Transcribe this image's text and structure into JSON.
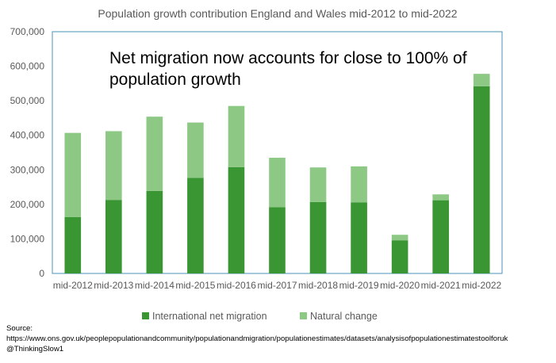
{
  "chart_data": {
    "type": "bar",
    "stacked": true,
    "title": "Population growth contribution England and Wales mid-2012 to mid-2022",
    "annotation": [
      "Net migration now accounts for close to 100% of",
      "population growth"
    ],
    "categories": [
      "mid-2012",
      "mid-2013",
      "mid-2014",
      "mid-2015",
      "mid-2016",
      "mid-2017",
      "mid-2018",
      "mid-2019",
      "mid-2020",
      "mid-2021",
      "mid-2022"
    ],
    "series": [
      {
        "name": "International net migration",
        "color": "#3a9533",
        "values": [
          163000,
          213000,
          239000,
          277000,
          308000,
          192000,
          207000,
          206000,
          96000,
          212000,
          542000
        ]
      },
      {
        "name": "Natural change",
        "color": "#8dc985",
        "values": [
          244000,
          199000,
          215000,
          160000,
          177000,
          143000,
          100000,
          104000,
          16000,
          17000,
          36000
        ]
      }
    ],
    "ylim": [
      0,
      700000
    ],
    "yticks": [
      "0",
      "100,000",
      "200,000",
      "300,000",
      "400,000",
      "500,000",
      "600,000",
      "700,000"
    ],
    "grid": false,
    "legend_position": "bottom"
  },
  "source": {
    "label": "Source:",
    "url": "https://www.ons.gov.uk/peoplepopulationandcommunity/populationandmigration/populationestimates/datasets/analysisofpopulationestimatestoolforuk",
    "credit": "@ThinkingSlow1"
  }
}
